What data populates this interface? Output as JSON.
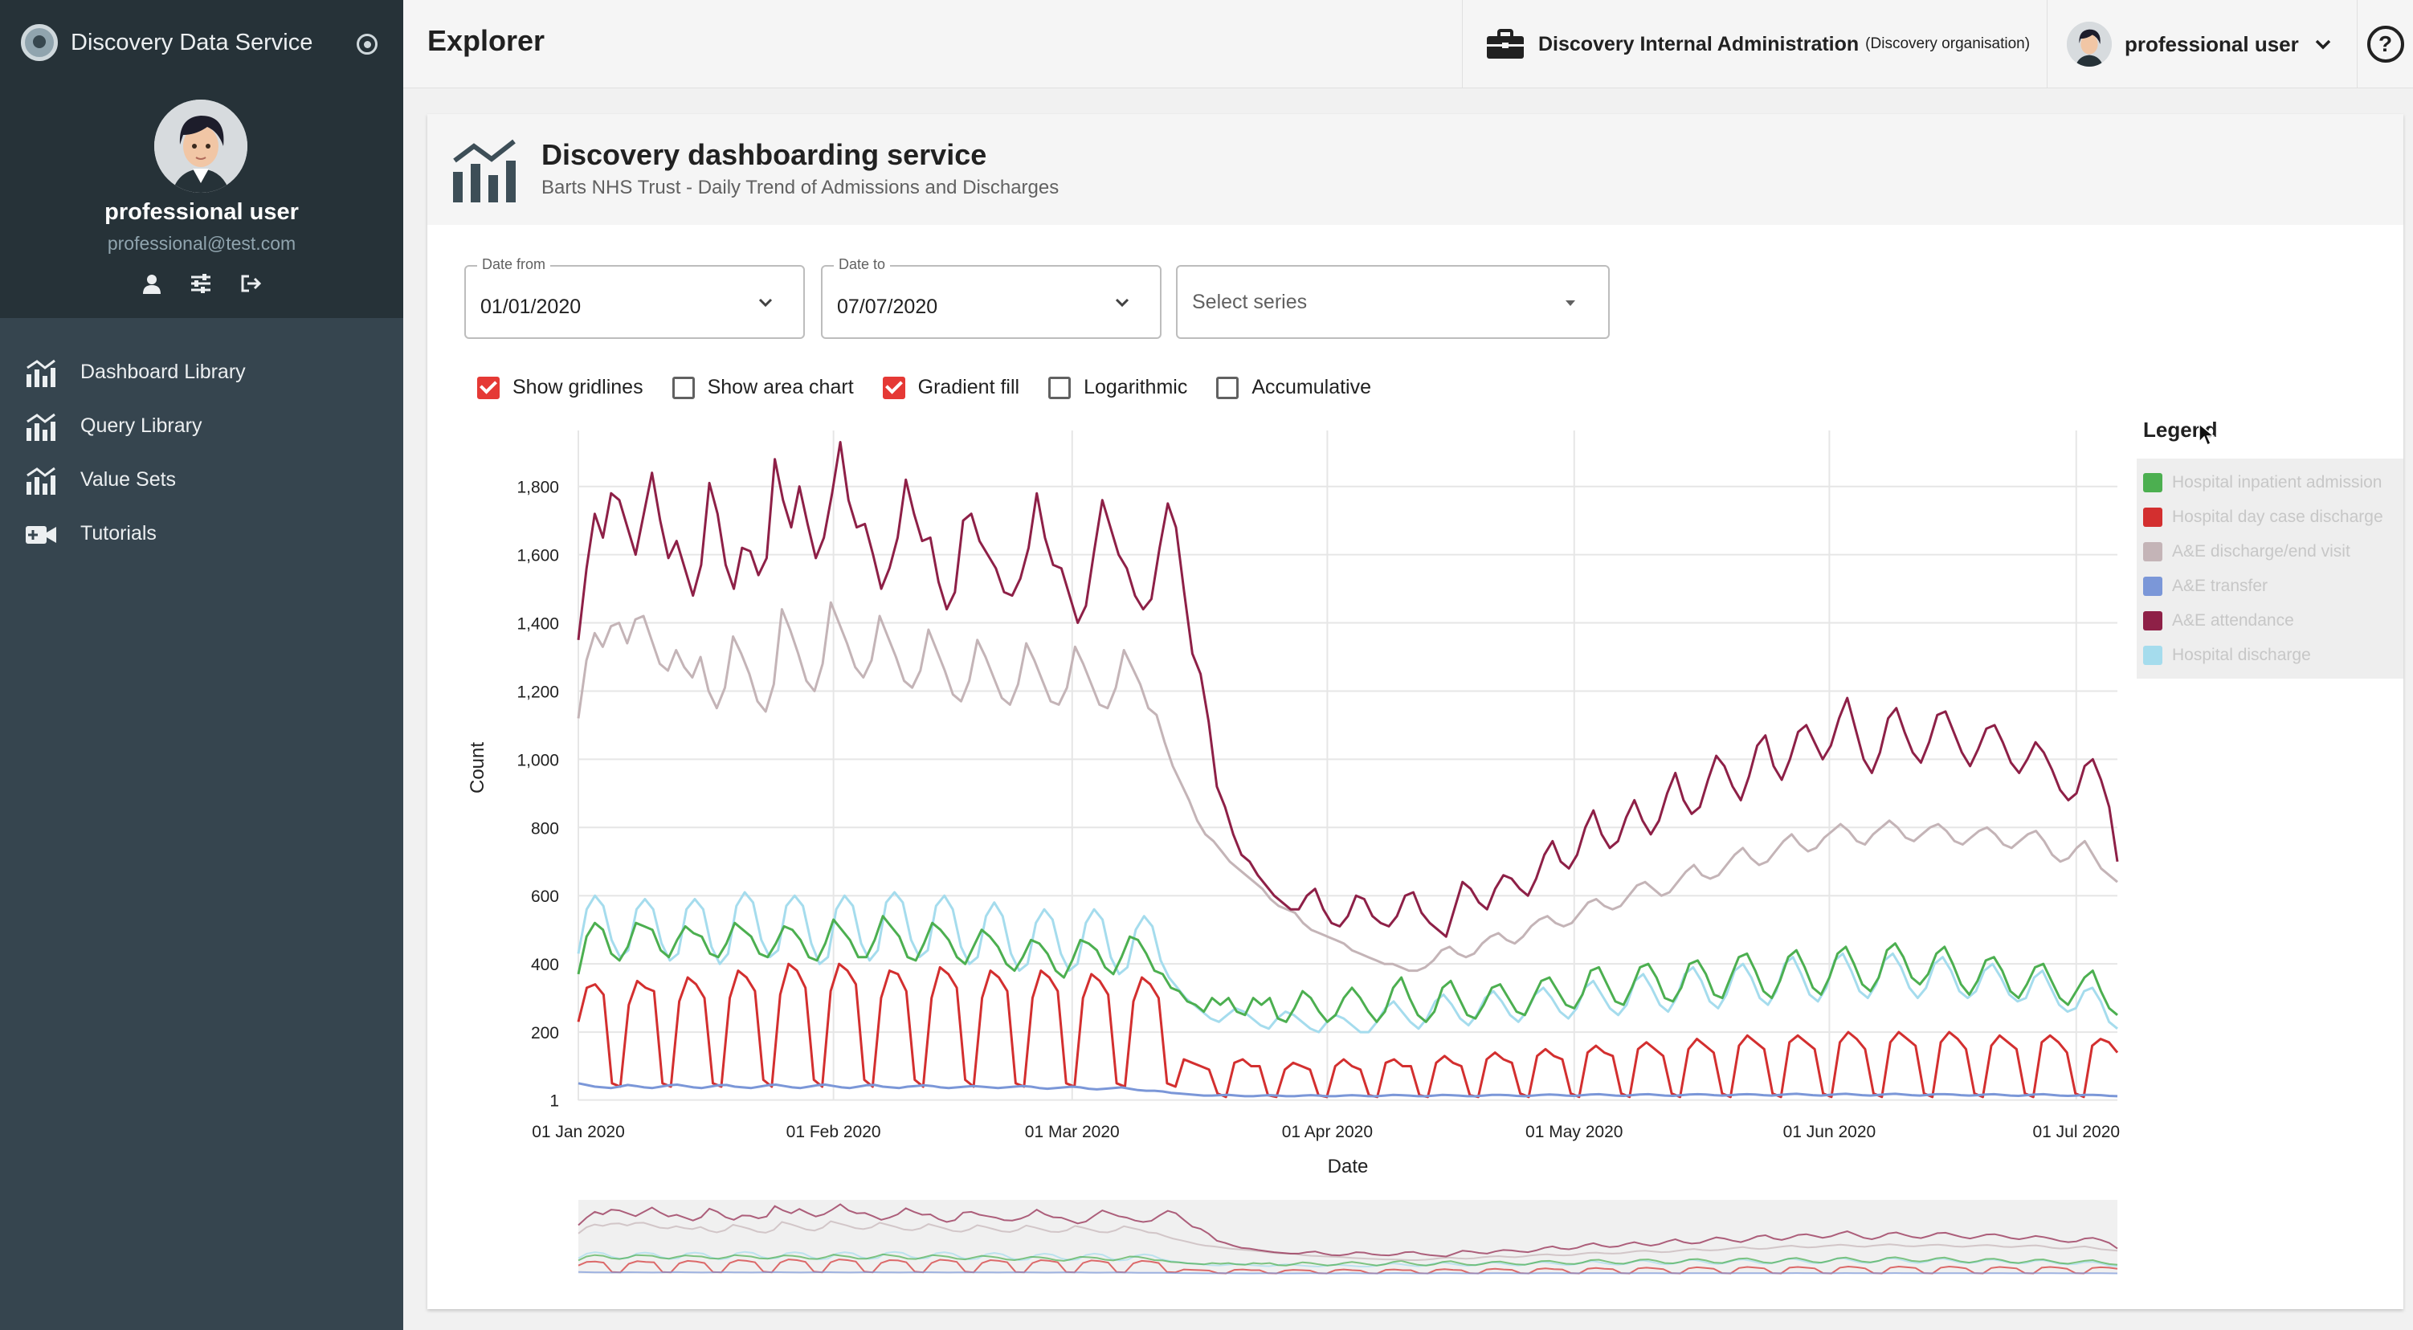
{
  "app": {
    "name": "Discovery Data Service"
  },
  "sidebar": {
    "user_name": "professional user",
    "user_email": "professional@test.com",
    "icons": [
      "person-icon",
      "sliders-icon",
      "logout-icon"
    ],
    "items": [
      {
        "label": "Dashboard Library",
        "icon": "bar-chart-icon"
      },
      {
        "label": "Query Library",
        "icon": "bar-chart-icon"
      },
      {
        "label": "Value Sets",
        "icon": "bar-chart-icon"
      },
      {
        "label": "Tutorials",
        "icon": "video-camera-icon"
      }
    ]
  },
  "header": {
    "title": "Explorer",
    "org_name": "Discovery Internal Administration",
    "org_sub": "(Discovery organisation)",
    "user": "professional user",
    "help": "?"
  },
  "card": {
    "title": "Discovery dashboarding service",
    "subtitle": "Barts NHS Trust - Daily Trend of Admissions and Discharges"
  },
  "filters": {
    "date_from": {
      "label": "Date from",
      "value": "01/01/2020"
    },
    "date_to": {
      "label": "Date to",
      "value": "07/07/2020"
    },
    "series": {
      "placeholder": "Select series"
    }
  },
  "options": [
    {
      "label": "Show gridlines",
      "checked": true
    },
    {
      "label": "Show area chart",
      "checked": false
    },
    {
      "label": "Gradient fill",
      "checked": true
    },
    {
      "label": "Logarithmic",
      "checked": false
    },
    {
      "label": "Accumulative",
      "checked": false
    }
  ],
  "chart_data": {
    "type": "line",
    "xlabel": "Date",
    "ylabel": "Count",
    "ylim": [
      0,
      1950
    ],
    "yticks": [
      1,
      200,
      400,
      600,
      800,
      1000,
      1200,
      1400,
      1600,
      1800
    ],
    "ytick_labels": [
      "1",
      "200",
      "400",
      "600",
      "800",
      "1,000",
      "1,200",
      "1,400",
      "1,600",
      "1,800"
    ],
    "xticks": [
      "01 Jan 2020",
      "01 Feb 2020",
      "01 Mar 2020",
      "01 Apr 2020",
      "01 May 2020",
      "01 Jun 2020",
      "01 Jul 2020"
    ],
    "x_start": "2020-01-01",
    "x_end": "2020-07-06",
    "grid": true,
    "legend_title": "Legend",
    "legend_position": "right",
    "series": [
      {
        "name": "Hospital inpatient admission",
        "color": "#4caf50",
        "values": [
          370,
          480,
          520,
          500,
          430,
          410,
          450,
          520,
          510,
          500,
          440,
          420,
          470,
          510,
          490,
          480,
          430,
          420,
          460,
          520,
          500,
          480,
          430,
          420,
          460,
          510,
          500,
          470,
          420,
          410,
          460,
          530,
          500,
          470,
          420,
          420,
          470,
          540,
          510,
          480,
          420,
          410,
          460,
          520,
          500,
          470,
          420,
          400,
          450,
          500,
          480,
          450,
          400,
          380,
          420,
          470,
          460,
          430,
          380,
          360,
          410,
          470,
          460,
          440,
          390,
          370,
          420,
          480,
          470,
          430,
          380,
          370,
          330,
          320,
          290,
          280,
          260,
          300,
          280,
          300,
          260,
          250,
          300,
          280,
          300,
          240,
          230,
          270,
          320,
          300,
          260,
          230,
          250,
          300,
          330,
          300,
          260,
          230,
          260,
          330,
          360,
          300,
          250,
          230,
          260,
          330,
          350,
          300,
          250,
          240,
          280,
          330,
          340,
          300,
          260,
          250,
          300,
          350,
          360,
          320,
          280,
          270,
          310,
          380,
          390,
          340,
          290,
          280,
          330,
          390,
          400,
          360,
          300,
          290,
          330,
          400,
          410,
          370,
          310,
          300,
          360,
          420,
          430,
          380,
          320,
          300,
          350,
          420,
          440,
          390,
          330,
          310,
          360,
          430,
          450,
          400,
          340,
          320,
          360,
          440,
          460,
          420,
          360,
          340,
          370,
          430,
          450,
          400,
          340,
          310,
          350,
          410,
          420,
          380,
          320,
          300,
          340,
          390,
          400,
          350,
          300,
          280,
          320,
          360,
          380,
          320,
          270,
          250
        ]
      },
      {
        "name": "Hospital day case discharge",
        "color": "#d32f2f",
        "values": [
          230,
          330,
          340,
          310,
          50,
          40,
          280,
          350,
          330,
          320,
          50,
          40,
          290,
          360,
          340,
          300,
          50,
          40,
          300,
          380,
          360,
          320,
          60,
          40,
          310,
          400,
          380,
          330,
          60,
          40,
          320,
          400,
          380,
          340,
          60,
          40,
          300,
          380,
          370,
          320,
          60,
          40,
          300,
          390,
          370,
          330,
          60,
          40,
          300,
          380,
          360,
          320,
          50,
          40,
          300,
          380,
          360,
          320,
          50,
          40,
          300,
          370,
          350,
          310,
          50,
          40,
          290,
          360,
          340,
          300,
          50,
          40,
          120,
          110,
          100,
          90,
          20,
          10,
          110,
          120,
          100,
          100,
          15,
          10,
          90,
          110,
          100,
          90,
          15,
          10,
          100,
          120,
          100,
          90,
          15,
          10,
          110,
          120,
          100,
          100,
          15,
          10,
          110,
          130,
          110,
          100,
          15,
          10,
          120,
          140,
          120,
          110,
          20,
          10,
          130,
          150,
          130,
          120,
          20,
          10,
          140,
          160,
          140,
          130,
          20,
          10,
          150,
          170,
          150,
          130,
          20,
          10,
          150,
          180,
          160,
          140,
          20,
          10,
          160,
          190,
          170,
          150,
          20,
          10,
          170,
          190,
          170,
          150,
          20,
          10,
          170,
          200,
          180,
          150,
          20,
          10,
          170,
          200,
          180,
          160,
          20,
          10,
          170,
          200,
          180,
          150,
          20,
          10,
          160,
          190,
          170,
          150,
          20,
          10,
          170,
          190,
          170,
          140,
          20,
          10,
          160,
          180,
          170,
          140
        ]
      },
      {
        "name": "A&E discharge/end visit",
        "color": "#c4b4b7",
        "values": [
          1120,
          1290,
          1370,
          1330,
          1390,
          1400,
          1340,
          1410,
          1420,
          1350,
          1280,
          1260,
          1320,
          1270,
          1240,
          1300,
          1200,
          1150,
          1210,
          1360,
          1310,
          1250,
          1170,
          1140,
          1220,
          1440,
          1380,
          1310,
          1230,
          1200,
          1280,
          1460,
          1400,
          1340,
          1270,
          1240,
          1290,
          1420,
          1360,
          1300,
          1230,
          1210,
          1260,
          1380,
          1320,
          1260,
          1190,
          1170,
          1230,
          1350,
          1300,
          1240,
          1180,
          1160,
          1220,
          1340,
          1290,
          1230,
          1170,
          1160,
          1210,
          1330,
          1280,
          1220,
          1160,
          1150,
          1210,
          1320,
          1270,
          1220,
          1150,
          1130,
          1050,
          980,
          930,
          880,
          820,
          780,
          760,
          730,
          700,
          680,
          660,
          640,
          620,
          590,
          570,
          560,
          550,
          520,
          500,
          490,
          480,
          470,
          460,
          440,
          430,
          420,
          410,
          400,
          400,
          390,
          380,
          380,
          390,
          410,
          440,
          450,
          430,
          420,
          430,
          460,
          480,
          490,
          470,
          460,
          480,
          510,
          530,
          540,
          520,
          510,
          520,
          550,
          580,
          590,
          570,
          560,
          570,
          600,
          630,
          640,
          620,
          600,
          610,
          640,
          670,
          690,
          660,
          650,
          660,
          690,
          720,
          740,
          710,
          690,
          700,
          730,
          760,
          780,
          750,
          730,
          740,
          770,
          790,
          810,
          790,
          760,
          750,
          780,
          800,
          820,
          800,
          770,
          760,
          780,
          800,
          810,
          790,
          760,
          750,
          770,
          790,
          800,
          780,
          750,
          740,
          760,
          780,
          790,
          760,
          720,
          700,
          710,
          740,
          760,
          720,
          680,
          660,
          640
        ]
      },
      {
        "name": "A&E transfer",
        "color": "#7b97d8",
        "values": [
          50,
          45,
          40,
          38,
          36,
          40,
          45,
          42,
          38,
          36,
          40,
          44,
          46,
          42,
          38,
          36,
          40,
          44,
          45,
          40,
          38,
          36,
          40,
          44,
          46,
          42,
          38,
          36,
          40,
          44,
          46,
          42,
          38,
          36,
          40,
          44,
          45,
          40,
          38,
          36,
          40,
          42,
          44,
          42,
          38,
          36,
          38,
          40,
          42,
          40,
          38,
          36,
          38,
          40,
          42,
          40,
          36,
          34,
          36,
          38,
          40,
          38,
          34,
          32,
          34,
          36,
          38,
          34,
          30,
          28,
          28,
          26,
          22,
          20,
          18,
          16,
          14,
          14,
          15,
          16,
          14,
          12,
          12,
          14,
          15,
          14,
          12,
          12,
          14,
          15,
          14,
          12,
          12,
          14,
          15,
          14,
          12,
          12,
          14,
          16,
          15,
          14,
          12,
          12,
          14,
          16,
          15,
          14,
          12,
          12,
          14,
          16,
          16,
          15,
          13,
          12,
          14,
          16,
          17,
          16,
          14,
          13,
          15,
          17,
          18,
          16,
          14,
          13,
          15,
          17,
          18,
          16,
          14,
          13,
          15,
          17,
          18,
          17,
          15,
          14,
          15,
          17,
          18,
          17,
          15,
          14,
          16,
          18,
          19,
          17,
          15,
          14,
          16,
          18,
          19,
          17,
          15,
          14,
          16,
          18,
          19,
          17,
          15,
          14,
          16,
          18,
          18,
          17,
          15,
          14,
          15,
          17,
          18,
          16,
          14,
          13,
          15,
          17,
          18,
          16,
          14,
          13,
          14,
          16,
          16,
          15,
          13,
          12
        ]
      },
      {
        "name": "A&E attendance",
        "color": "#8e2047",
        "values": [
          1350,
          1560,
          1720,
          1650,
          1780,
          1760,
          1680,
          1600,
          1720,
          1840,
          1700,
          1590,
          1640,
          1560,
          1480,
          1570,
          1810,
          1720,
          1570,
          1500,
          1620,
          1610,
          1540,
          1590,
          1880,
          1760,
          1680,
          1800,
          1690,
          1590,
          1650,
          1780,
          1930,
          1760,
          1680,
          1690,
          1600,
          1500,
          1560,
          1650,
          1820,
          1720,
          1640,
          1650,
          1520,
          1440,
          1490,
          1700,
          1720,
          1640,
          1600,
          1560,
          1490,
          1480,
          1530,
          1620,
          1780,
          1650,
          1570,
          1560,
          1480,
          1400,
          1450,
          1610,
          1760,
          1680,
          1600,
          1560,
          1480,
          1440,
          1470,
          1620,
          1750,
          1680,
          1490,
          1310,
          1250,
          1110,
          920,
          860,
          780,
          720,
          700,
          660,
          630,
          600,
          580,
          560,
          560,
          600,
          620,
          560,
          520,
          510,
          540,
          600,
          590,
          540,
          520,
          510,
          540,
          600,
          610,
          550,
          520,
          500,
          480,
          560,
          640,
          620,
          580,
          560,
          620,
          660,
          650,
          620,
          600,
          650,
          720,
          760,
          700,
          680,
          720,
          800,
          850,
          780,
          740,
          760,
          830,
          880,
          820,
          780,
          820,
          900,
          960,
          880,
          840,
          860,
          940,
          1010,
          980,
          920,
          880,
          950,
          1040,
          1070,
          980,
          940,
          1000,
          1080,
          1100,
          1050,
          1000,
          1040,
          1120,
          1180,
          1090,
          1000,
          960,
          1020,
          1120,
          1150,
          1080,
          1020,
          990,
          1050,
          1130,
          1140,
          1080,
          1020,
          980,
          1030,
          1090,
          1100,
          1050,
          990,
          960,
          1000,
          1050,
          1020,
          970,
          910,
          880,
          900,
          980,
          1000,
          940,
          860,
          700
        ]
      },
      {
        "name": "Hospital discharge",
        "color": "#a5dced",
        "values": [
          430,
          560,
          600,
          570,
          470,
          420,
          440,
          560,
          590,
          560,
          460,
          410,
          430,
          560,
          590,
          560,
          450,
          400,
          430,
          570,
          610,
          580,
          470,
          420,
          440,
          570,
          600,
          570,
          460,
          400,
          420,
          560,
          600,
          570,
          460,
          410,
          440,
          580,
          610,
          580,
          470,
          420,
          440,
          570,
          600,
          560,
          450,
          400,
          420,
          540,
          580,
          540,
          430,
          380,
          400,
          520,
          560,
          530,
          430,
          380,
          400,
          520,
          560,
          530,
          420,
          370,
          390,
          500,
          540,
          510,
          410,
          360,
          330,
          300,
          280,
          260,
          240,
          230,
          250,
          270,
          260,
          240,
          220,
          210,
          240,
          260,
          250,
          230,
          210,
          200,
          230,
          250,
          240,
          220,
          200,
          200,
          230,
          270,
          290,
          260,
          230,
          210,
          240,
          290,
          310,
          280,
          240,
          220,
          250,
          300,
          320,
          290,
          250,
          230,
          260,
          310,
          330,
          300,
          260,
          240,
          270,
          330,
          350,
          310,
          270,
          250,
          280,
          350,
          370,
          330,
          280,
          260,
          300,
          370,
          390,
          350,
          290,
          270,
          310,
          380,
          400,
          360,
          300,
          280,
          320,
          400,
          420,
          370,
          310,
          290,
          330,
          410,
          430,
          380,
          320,
          300,
          340,
          410,
          430,
          390,
          330,
          300,
          330,
          400,
          420,
          380,
          320,
          300,
          320,
          380,
          400,
          360,
          310,
          290,
          300,
          360,
          380,
          330,
          280,
          260,
          270,
          320,
          330,
          290,
          230,
          210
        ]
      }
    ]
  }
}
